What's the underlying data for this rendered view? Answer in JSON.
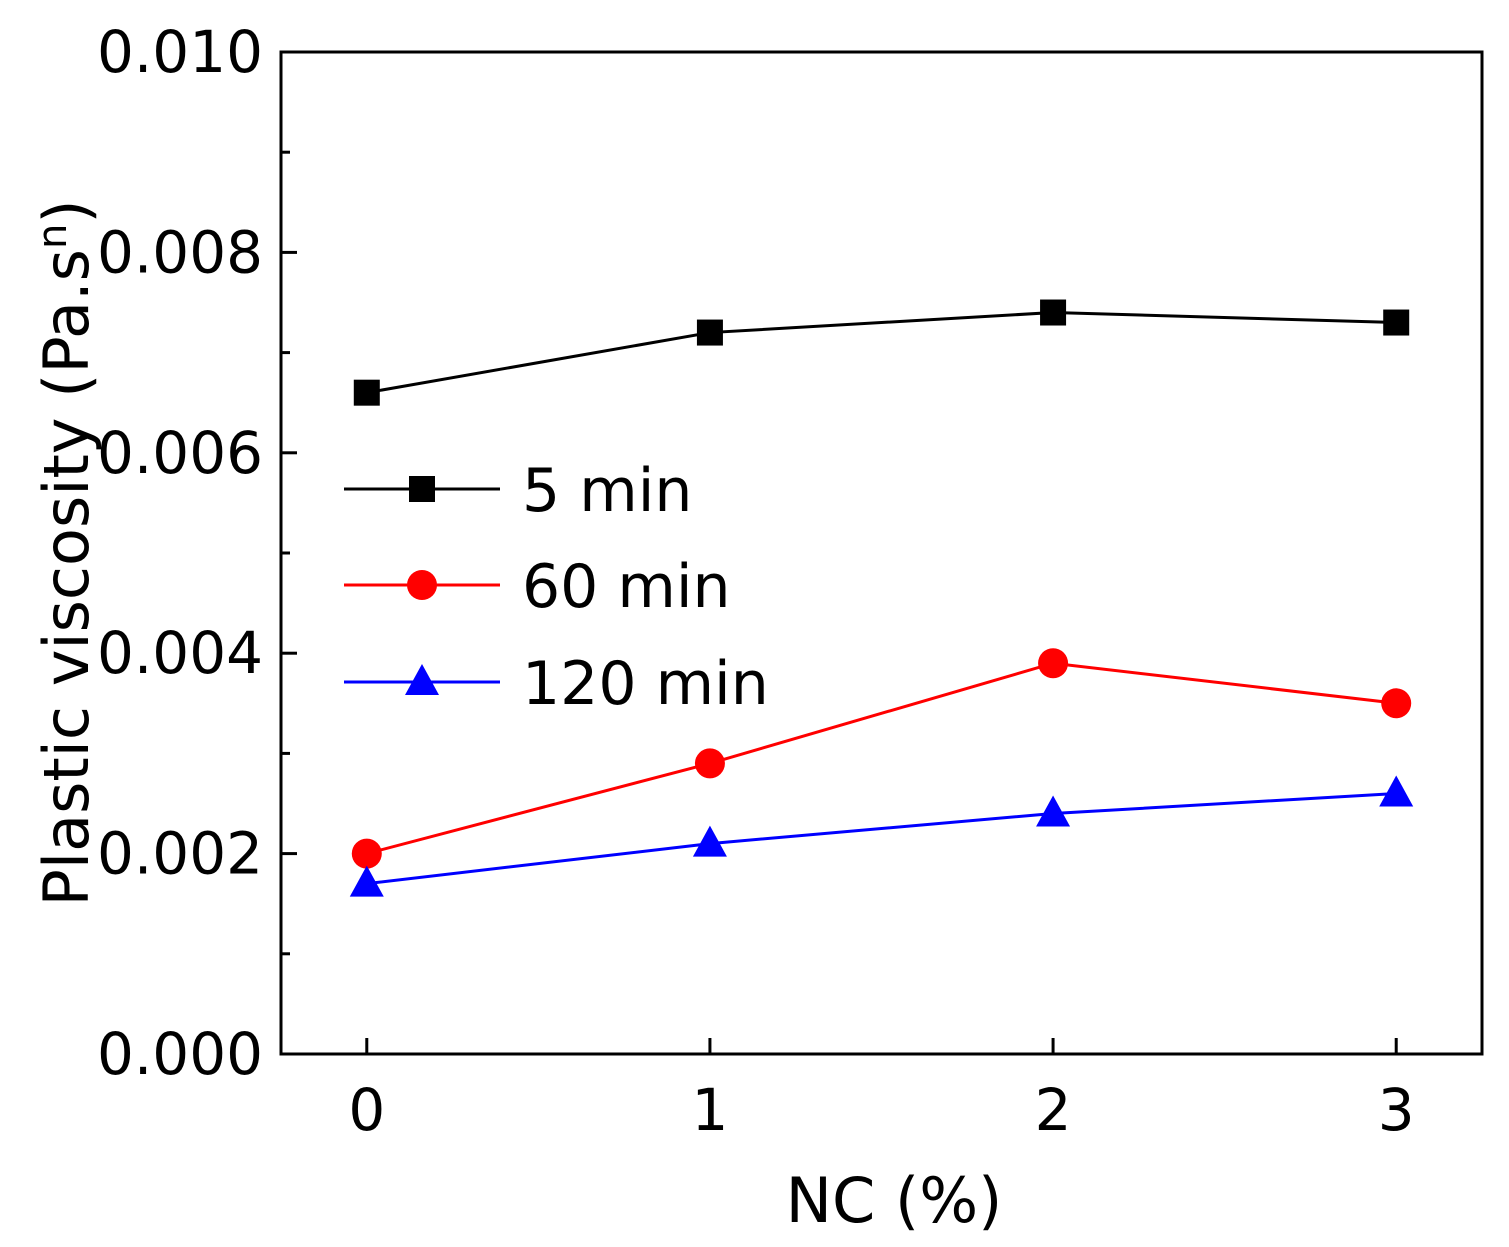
{
  "chart_data": {
    "type": "line",
    "title": "",
    "xlabel": "NC  (%)",
    "ylabel": "Plastic viscosity (Pa.s",
    "ylabel_superscript": "n",
    "ylabel_close": ")",
    "x": [
      0,
      1,
      2,
      3
    ],
    "x_tick_labels": [
      "0",
      "1",
      "2",
      "3"
    ],
    "xlim": [
      -0.25,
      3.25
    ],
    "y_ticks": [
      0.0,
      0.002,
      0.004,
      0.006,
      0.008,
      0.01
    ],
    "y_tick_labels": [
      "0.000",
      "0.002",
      "0.004",
      "0.006",
      "0.008",
      "0.010"
    ],
    "ylim": [
      0,
      0.01
    ],
    "grid": false,
    "legend_position": "middle-left",
    "series": [
      {
        "name": "5 min",
        "color": "#000000",
        "marker": "square",
        "values": [
          0.0066,
          0.0072,
          0.0074,
          0.0073
        ]
      },
      {
        "name": "60 min",
        "color": "#ff0000",
        "marker": "circle",
        "values": [
          0.002,
          0.0029,
          0.0039,
          0.0035
        ]
      },
      {
        "name": "120 min",
        "color": "#0000ff",
        "marker": "triangle",
        "values": [
          0.0017,
          0.0021,
          0.0024,
          0.0026
        ]
      }
    ]
  }
}
